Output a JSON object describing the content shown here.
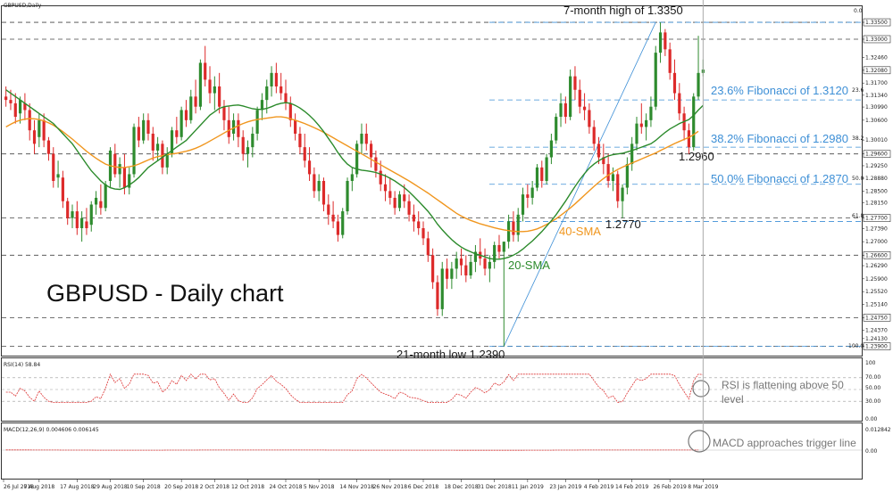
{
  "chart_title": "GBPUSD,Daily",
  "big_title": "GBPUSD - Daily chart",
  "colors": {
    "up": "#2e8b2e",
    "down": "#dd2a2a",
    "sma20": "#2b8a2b",
    "sma40": "#f0961e",
    "fib": "#3d8fd6",
    "rsi": "#d33",
    "macd_signal": "#d33",
    "macd_hist": "#aaa"
  },
  "annotations": {
    "high": "7-month high of 1.3350",
    "low": "21-month low 1.2390",
    "fib236": "23.6% Fibonacci of 1.3120",
    "fib382": "38.2% Fibonacci of 1.2980",
    "fib500": "50.0% Fibonacci of 1.2870",
    "l2960": "1.2960",
    "l2770": "1.2770",
    "sma40": "40-SMA",
    "sma20": "20-SMA",
    "rsi_note_1": "RSI is flattening above 50",
    "rsi_note_2": "level",
    "macd_note": "MACD approaches trigger line"
  },
  "rsi": {
    "label": "RSI(14) 58.84",
    "ticks": [
      "100",
      "70.00",
      "50.00",
      "30.00",
      "0.00"
    ]
  },
  "macd": {
    "label": "MACD(12,26,9) 0.004606 0.006145",
    "ticks": [
      "0.012842",
      "0.00"
    ]
  },
  "fib_markers": {
    "f0": "0.0",
    "f236": "23.6",
    "f382": "38.2",
    "f500": "50.0",
    "f618": "61.8",
    "f100": "100.0"
  },
  "chart_data": {
    "type": "candlestick",
    "symbol": "GBPUSD",
    "timeframe": "Daily",
    "ylim": [
      1.2365,
      1.3395
    ],
    "y_ticks": [
      "1.33500",
      "1.33000",
      "1.32460",
      "1.32080",
      "1.31700",
      "1.31340",
      "1.30990",
      "1.30600",
      "1.30010",
      "1.29600",
      "1.29250",
      "1.28880",
      "1.28500",
      "1.28150",
      "1.27700",
      "1.27390",
      "1.27000",
      "1.26600",
      "1.26290",
      "1.25900",
      "1.25520",
      "1.25140",
      "1.24750",
      "1.24370",
      "1.24130",
      "1.23900"
    ],
    "highlighted_levels": [
      "1.33500",
      "1.33000",
      "1.32080",
      "1.29600",
      "1.27700",
      "1.26600",
      "1.24750",
      "1.23900"
    ],
    "x_labels": [
      "26 Jul 2018",
      "7 Aug 2018",
      "17 Aug 2018",
      "29 Aug 2018",
      "10 Sep 2018",
      "20 Sep 2018",
      "2 Oct 2018",
      "12 Oct 2018",
      "24 Oct 2018",
      "5 Nov 2018",
      "14 Nov 2018",
      "26 Nov 2018",
      "6 Dec 2018",
      "18 Dec 2018",
      "31 Dec 2018",
      "11 Jan 2019",
      "23 Jan 2019",
      "4 Feb 2019",
      "14 Feb 2019",
      "26 Feb 2019",
      "8 Mar 2019"
    ],
    "horizontal_levels": [
      1.335,
      1.33,
      1.296,
      1.277,
      1.266,
      1.2475,
      1.239
    ],
    "fibonacci": [
      {
        "pct": "0.0",
        "value": 1.335
      },
      {
        "pct": "23.6",
        "value": 1.312
      },
      {
        "pct": "38.2",
        "value": 1.298
      },
      {
        "pct": "50.0",
        "value": 1.287
      },
      {
        "pct": "61.8",
        "value": 1.276
      },
      {
        "pct": "100.0",
        "value": 1.239
      }
    ],
    "key_points": {
      "seven_month_high": 1.335,
      "twenty_one_month_low": 1.239,
      "support_1": 1.296,
      "support_2": 1.277
    },
    "candles_ohlc": [
      [
        1.313,
        1.316,
        1.31,
        1.312
      ],
      [
        1.312,
        1.315,
        1.309,
        1.311
      ],
      [
        1.311,
        1.314,
        1.305,
        1.307
      ],
      [
        1.308,
        1.313,
        1.305,
        1.312
      ],
      [
        1.311,
        1.314,
        1.306,
        1.309
      ],
      [
        1.309,
        1.311,
        1.3,
        1.303
      ],
      [
        1.303,
        1.306,
        1.296,
        1.299
      ],
      [
        1.301,
        1.308,
        1.298,
        1.306
      ],
      [
        1.306,
        1.308,
        1.298,
        1.3
      ],
      [
        1.3,
        1.301,
        1.294,
        1.296
      ],
      [
        1.296,
        1.298,
        1.286,
        1.288
      ],
      [
        1.289,
        1.294,
        1.286,
        1.29
      ],
      [
        1.289,
        1.291,
        1.28,
        1.282
      ],
      [
        1.282,
        1.283,
        1.275,
        1.277
      ],
      [
        1.277,
        1.281,
        1.274,
        1.279
      ],
      [
        1.279,
        1.282,
        1.272,
        1.274
      ],
      [
        1.274,
        1.279,
        1.27,
        1.277
      ],
      [
        1.276,
        1.28,
        1.272,
        1.274
      ],
      [
        1.275,
        1.282,
        1.273,
        1.281
      ],
      [
        1.281,
        1.285,
        1.278,
        1.283
      ],
      [
        1.282,
        1.287,
        1.278,
        1.28
      ],
      [
        1.28,
        1.288,
        1.279,
        1.287
      ],
      [
        1.288,
        1.298,
        1.286,
        1.297
      ],
      [
        1.296,
        1.299,
        1.289,
        1.29
      ],
      [
        1.29,
        1.295,
        1.286,
        1.293
      ],
      [
        1.292,
        1.296,
        1.284,
        1.286
      ],
      [
        1.286,
        1.292,
        1.284,
        1.29
      ],
      [
        1.29,
        1.305,
        1.289,
        1.304
      ],
      [
        1.304,
        1.307,
        1.298,
        1.3
      ],
      [
        1.3,
        1.308,
        1.299,
        1.306
      ],
      [
        1.306,
        1.308,
        1.3,
        1.302
      ],
      [
        1.302,
        1.304,
        1.294,
        1.297
      ],
      [
        1.297,
        1.301,
        1.294,
        1.299
      ],
      [
        1.299,
        1.3,
        1.29,
        1.292
      ],
      [
        1.292,
        1.298,
        1.29,
        1.296
      ],
      [
        1.296,
        1.304,
        1.295,
        1.303
      ],
      [
        1.303,
        1.307,
        1.299,
        1.301
      ],
      [
        1.301,
        1.31,
        1.3,
        1.309
      ],
      [
        1.309,
        1.312,
        1.304,
        1.306
      ],
      [
        1.306,
        1.315,
        1.305,
        1.313
      ],
      [
        1.313,
        1.318,
        1.308,
        1.31
      ],
      [
        1.31,
        1.324,
        1.309,
        1.323
      ],
      [
        1.323,
        1.328,
        1.316,
        1.318
      ],
      [
        1.318,
        1.322,
        1.311,
        1.314
      ],
      [
        1.314,
        1.319,
        1.309,
        1.316
      ],
      [
        1.316,
        1.32,
        1.308,
        1.31
      ],
      [
        1.31,
        1.312,
        1.303,
        1.306
      ],
      [
        1.306,
        1.31,
        1.299,
        1.301
      ],
      [
        1.302,
        1.308,
        1.3,
        1.306
      ],
      [
        1.306,
        1.308,
        1.298,
        1.301
      ],
      [
        1.301,
        1.303,
        1.294,
        1.296
      ],
      [
        1.296,
        1.3,
        1.292,
        1.298
      ],
      [
        1.298,
        1.304,
        1.295,
        1.302
      ],
      [
        1.302,
        1.31,
        1.3,
        1.309
      ],
      [
        1.309,
        1.314,
        1.306,
        1.312
      ],
      [
        1.312,
        1.318,
        1.308,
        1.316
      ],
      [
        1.316,
        1.322,
        1.313,
        1.32
      ],
      [
        1.32,
        1.323,
        1.314,
        1.316
      ],
      [
        1.316,
        1.32,
        1.312,
        1.314
      ],
      [
        1.314,
        1.318,
        1.309,
        1.311
      ],
      [
        1.311,
        1.313,
        1.304,
        1.306
      ],
      [
        1.306,
        1.308,
        1.3,
        1.302
      ],
      [
        1.302,
        1.304,
        1.296,
        1.298
      ],
      [
        1.298,
        1.302,
        1.292,
        1.294
      ],
      [
        1.294,
        1.298,
        1.288,
        1.29
      ],
      [
        1.29,
        1.292,
        1.283,
        1.285
      ],
      [
        1.285,
        1.29,
        1.282,
        1.288
      ],
      [
        1.288,
        1.289,
        1.279,
        1.281
      ],
      [
        1.281,
        1.284,
        1.275,
        1.278
      ],
      [
        1.278,
        1.282,
        1.274,
        1.276
      ],
      [
        1.276,
        1.278,
        1.27,
        1.272
      ],
      [
        1.272,
        1.28,
        1.271,
        1.279
      ],
      [
        1.279,
        1.289,
        1.278,
        1.288
      ],
      [
        1.288,
        1.292,
        1.285,
        1.29
      ],
      [
        1.29,
        1.3,
        1.289,
        1.299
      ],
      [
        1.299,
        1.305,
        1.296,
        1.302
      ],
      [
        1.302,
        1.305,
        1.297,
        1.299
      ],
      [
        1.299,
        1.3,
        1.292,
        1.295
      ],
      [
        1.295,
        1.297,
        1.289,
        1.291
      ],
      [
        1.291,
        1.294,
        1.285,
        1.287
      ],
      [
        1.287,
        1.29,
        1.282,
        1.285
      ],
      [
        1.285,
        1.289,
        1.281,
        1.283
      ],
      [
        1.283,
        1.285,
        1.278,
        1.28
      ],
      [
        1.28,
        1.285,
        1.279,
        1.284
      ],
      [
        1.284,
        1.287,
        1.28,
        1.282
      ],
      [
        1.282,
        1.284,
        1.276,
        1.278
      ],
      [
        1.278,
        1.281,
        1.273,
        1.276
      ],
      [
        1.276,
        1.279,
        1.272,
        1.274
      ],
      [
        1.274,
        1.276,
        1.269,
        1.271
      ],
      [
        1.271,
        1.273,
        1.264,
        1.266
      ],
      [
        1.266,
        1.268,
        1.256,
        1.258
      ],
      [
        1.258,
        1.26,
        1.248,
        1.25
      ],
      [
        1.25,
        1.264,
        1.248,
        1.262
      ],
      [
        1.262,
        1.265,
        1.256,
        1.259
      ],
      [
        1.259,
        1.264,
        1.256,
        1.262
      ],
      [
        1.262,
        1.267,
        1.259,
        1.265
      ],
      [
        1.265,
        1.268,
        1.26,
        1.263
      ],
      [
        1.263,
        1.266,
        1.258,
        1.26
      ],
      [
        1.26,
        1.266,
        1.259,
        1.264
      ],
      [
        1.264,
        1.269,
        1.261,
        1.267
      ],
      [
        1.267,
        1.271,
        1.263,
        1.265
      ],
      [
        1.265,
        1.268,
        1.26,
        1.262
      ],
      [
        1.262,
        1.266,
        1.258,
        1.264
      ],
      [
        1.264,
        1.27,
        1.262,
        1.269
      ],
      [
        1.269,
        1.272,
        1.265,
        1.267
      ],
      [
        1.267,
        1.27,
        1.239,
        1.27
      ],
      [
        1.27,
        1.278,
        1.268,
        1.276
      ],
      [
        1.276,
        1.279,
        1.27,
        1.272
      ],
      [
        1.272,
        1.28,
        1.27,
        1.278
      ],
      [
        1.278,
        1.286,
        1.276,
        1.284
      ],
      [
        1.284,
        1.287,
        1.28,
        1.283
      ],
      [
        1.283,
        1.288,
        1.281,
        1.286
      ],
      [
        1.286,
        1.293,
        1.285,
        1.292
      ],
      [
        1.292,
        1.294,
        1.286,
        1.288
      ],
      [
        1.288,
        1.296,
        1.287,
        1.295
      ],
      [
        1.295,
        1.302,
        1.293,
        1.3
      ],
      [
        1.3,
        1.308,
        1.299,
        1.307
      ],
      [
        1.307,
        1.314,
        1.304,
        1.311
      ],
      [
        1.311,
        1.313,
        1.305,
        1.307
      ],
      [
        1.307,
        1.321,
        1.306,
        1.319
      ],
      [
        1.319,
        1.322,
        1.312,
        1.315
      ],
      [
        1.315,
        1.318,
        1.308,
        1.31
      ],
      [
        1.31,
        1.314,
        1.306,
        1.309
      ],
      [
        1.309,
        1.311,
        1.302,
        1.304
      ],
      [
        1.304,
        1.306,
        1.297,
        1.299
      ],
      [
        1.299,
        1.301,
        1.293,
        1.295
      ],
      [
        1.295,
        1.299,
        1.29,
        1.293
      ],
      [
        1.293,
        1.296,
        1.286,
        1.288
      ],
      [
        1.288,
        1.292,
        1.285,
        1.29
      ],
      [
        1.29,
        1.291,
        1.28,
        1.282
      ],
      [
        1.282,
        1.287,
        1.277,
        1.286
      ],
      [
        1.286,
        1.295,
        1.284,
        1.293
      ],
      [
        1.293,
        1.301,
        1.291,
        1.299
      ],
      [
        1.299,
        1.307,
        1.297,
        1.305
      ],
      [
        1.305,
        1.311,
        1.302,
        1.304
      ],
      [
        1.304,
        1.308,
        1.3,
        1.306
      ],
      [
        1.306,
        1.313,
        1.304,
        1.31
      ],
      [
        1.31,
        1.328,
        1.309,
        1.326
      ],
      [
        1.326,
        1.335,
        1.323,
        1.332
      ],
      [
        1.332,
        1.333,
        1.325,
        1.327
      ],
      [
        1.327,
        1.329,
        1.318,
        1.32
      ],
      [
        1.32,
        1.324,
        1.312,
        1.314
      ],
      [
        1.314,
        1.317,
        1.306,
        1.308
      ],
      [
        1.308,
        1.31,
        1.3,
        1.303
      ],
      [
        1.303,
        1.305,
        1.296,
        1.298
      ],
      [
        1.298,
        1.314,
        1.297,
        1.313
      ],
      [
        1.313,
        1.331,
        1.312,
        1.32
      ],
      [
        1.32,
        1.324,
        1.319,
        1.321
      ]
    ],
    "series": [
      {
        "name": "20-SMA",
        "values": [
          1.315,
          1.314,
          1.313,
          1.312,
          1.311,
          1.31,
          1.309,
          1.308,
          1.307,
          1.306,
          1.305,
          1.3035,
          1.302,
          1.3005,
          1.299,
          1.297,
          1.295,
          1.293,
          1.291,
          1.2895,
          1.288,
          1.2868,
          1.286,
          1.2856,
          1.2855,
          1.286,
          1.2868,
          1.2878,
          1.289,
          1.2905,
          1.292,
          1.293,
          1.294,
          1.295,
          1.296,
          1.297,
          1.298,
          1.299,
          1.3,
          1.3015,
          1.303,
          1.3045,
          1.306,
          1.3075,
          1.3085,
          1.3095,
          1.31,
          1.3102,
          1.3104,
          1.3105,
          1.3102,
          1.3098,
          1.3094,
          1.3092,
          1.3092,
          1.3095,
          1.31,
          1.3106,
          1.311,
          1.3112,
          1.311,
          1.3104,
          1.3096,
          1.3086,
          1.3074,
          1.306,
          1.3044,
          1.3026,
          1.3006,
          1.2986,
          1.2964,
          1.2945,
          1.293,
          1.292,
          1.2915,
          1.2912,
          1.291,
          1.2908,
          1.2905,
          1.29,
          1.2895,
          1.2888,
          1.288,
          1.287,
          1.286,
          1.2848,
          1.2834,
          1.282,
          1.2805,
          1.279,
          1.2772,
          1.2752,
          1.2735,
          1.272,
          1.2706,
          1.2694,
          1.2684,
          1.2676,
          1.267,
          1.2664,
          1.266,
          1.2655,
          1.265,
          1.2648,
          1.2648,
          1.265,
          1.2654,
          1.266,
          1.2668,
          1.2678,
          1.269,
          1.2702,
          1.2716,
          1.273,
          1.2746,
          1.2762,
          1.278,
          1.28,
          1.282,
          1.2842,
          1.2864,
          1.2884,
          1.2902,
          1.2918,
          1.293,
          1.294,
          1.2948,
          1.2954,
          1.2958,
          1.296,
          1.2962,
          1.2966,
          1.297,
          1.2975,
          1.298,
          1.2985,
          1.299,
          1.3,
          1.3012,
          1.3024,
          1.3034,
          1.3042,
          1.305,
          1.3056,
          1.3062,
          1.3074,
          1.309,
          1.3104
        ]
      },
      {
        "name": "40-SMA",
        "values": [
          1.304,
          1.3048,
          1.3055,
          1.306,
          1.3063,
          1.3065,
          1.3064,
          1.3062,
          1.3058,
          1.3052,
          1.3045,
          1.3036,
          1.3026,
          1.3015,
          1.3004,
          1.2992,
          1.298,
          1.2968,
          1.2957,
          1.2947,
          1.2938,
          1.293,
          1.2925,
          1.2922,
          1.292,
          1.292,
          1.2922,
          1.2925,
          1.293,
          1.2936,
          1.2942,
          1.2948,
          1.2952,
          1.2955,
          1.2958,
          1.296,
          1.2962,
          1.2965,
          1.2968,
          1.2972,
          1.2977,
          1.2983,
          1.299,
          1.2998,
          1.3006,
          1.3014,
          1.3022,
          1.303,
          1.3037,
          1.3044,
          1.305,
          1.3055,
          1.3059,
          1.3062,
          1.3064,
          1.3066,
          1.3068,
          1.307,
          1.307,
          1.3068,
          1.3064,
          1.306,
          1.3055,
          1.305,
          1.3044,
          1.3038,
          1.3031,
          1.3024,
          1.3016,
          1.3008,
          1.3,
          1.2992,
          1.2984,
          1.2976,
          1.2968,
          1.296,
          1.2952,
          1.2944,
          1.2936,
          1.2928,
          1.292,
          1.2912,
          1.2904,
          1.2896,
          1.2888,
          1.288,
          1.2871,
          1.2862,
          1.2853,
          1.2844,
          1.2834,
          1.2824,
          1.2814,
          1.2804,
          1.2794,
          1.2784,
          1.2776,
          1.2769,
          1.2763,
          1.2758,
          1.2753,
          1.2749,
          1.2745,
          1.2741,
          1.2738,
          1.2735,
          1.2733,
          1.2731,
          1.273,
          1.273,
          1.2731,
          1.2734,
          1.2738,
          1.2744,
          1.2751,
          1.2759,
          1.2768,
          1.2778,
          1.2789,
          1.28,
          1.2812,
          1.2825,
          1.2838,
          1.2851,
          1.2864,
          1.2876,
          1.2887,
          1.2897,
          1.2906,
          1.2914,
          1.2921,
          1.2927,
          1.2933,
          1.2939,
          1.2945,
          1.2951,
          1.2957,
          1.2963,
          1.297,
          1.2977,
          1.2984,
          1.2991,
          1.2997,
          1.3003,
          1.3009,
          1.3017,
          1.3027
        ]
      }
    ]
  }
}
